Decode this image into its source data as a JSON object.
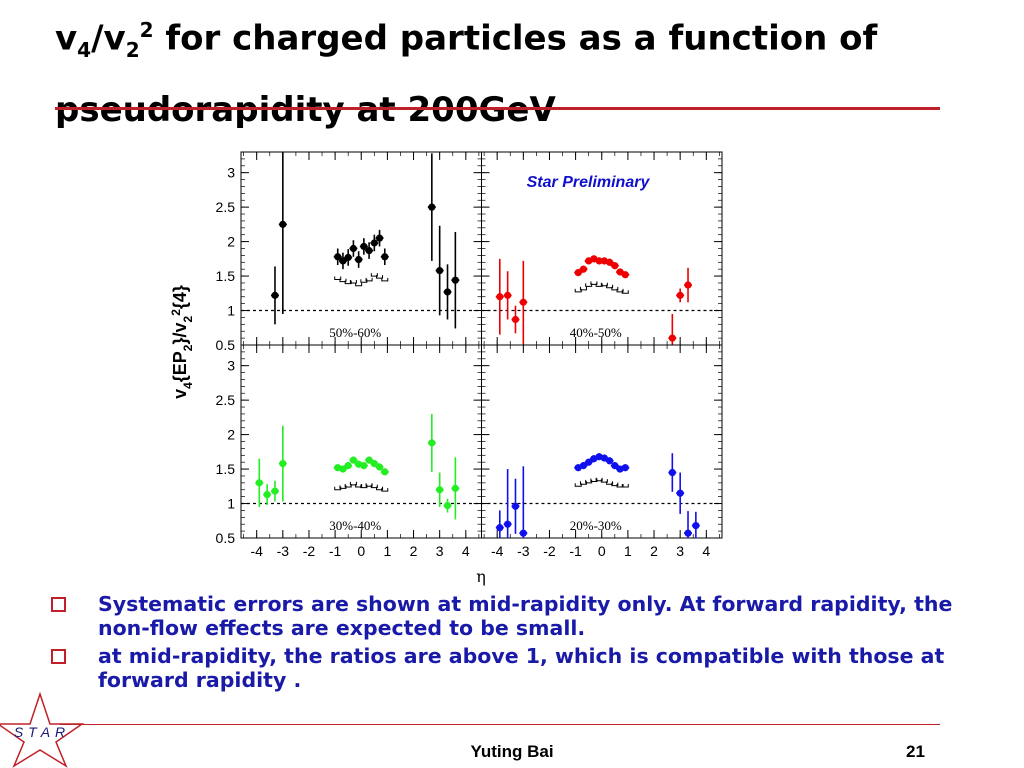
{
  "slide": {
    "title_parts": {
      "a": "v",
      "sub1": "4",
      "b": "/v",
      "sub2": "2",
      "sup": "2",
      "c": " for charged particles as a function of pseudorapidity at 200GeV"
    },
    "footer_name": "Yuting Bai",
    "page_number": "21",
    "logo_text": "STAR",
    "bullets": [
      "Systematic errors are shown at mid-rapidity only. At forward rapidity, the non-flow effects are expected to be small.",
      "at mid-rapidity, the ratios are above 1, which is compatible with those at forward rapidity ."
    ],
    "colors": {
      "title_rule": "#c0202a",
      "bullet_text": "#1a1aa8",
      "bullet_marker": "#c0202a"
    }
  },
  "chart_data": {
    "type": "scatter",
    "annotation": "Star Preliminary",
    "ylabel_parts": {
      "main": "v",
      "s1": "4",
      "m2": "{EP",
      "s2": "2",
      "m3": "}/v",
      "s3": "2",
      "sup": "2",
      "m4": "{4}"
    },
    "xlabel": "η",
    "xlim": [
      -4.6,
      4.6
    ],
    "ylim": [
      0.5,
      3.3
    ],
    "y_ticks": [
      0.5,
      1,
      1.5,
      2,
      2.5,
      3
    ],
    "x_ticks": [
      -4,
      -3,
      -2,
      -1,
      0,
      1,
      2,
      3,
      4
    ],
    "reference_line": 1,
    "grid": false,
    "panels": [
      {
        "label": "50%-60%",
        "color": "#000000",
        "points": [
          {
            "x": -3.3,
            "y": 1.22,
            "err": 0.42
          },
          {
            "x": -3.0,
            "y": 2.25,
            "err": 1.3
          },
          {
            "x": -0.9,
            "y": 1.78,
            "err": 0.12
          },
          {
            "x": -0.7,
            "y": 1.72,
            "err": 0.12
          },
          {
            "x": -0.5,
            "y": 1.77,
            "err": 0.12
          },
          {
            "x": -0.3,
            "y": 1.9,
            "err": 0.12
          },
          {
            "x": -0.1,
            "y": 1.74,
            "err": 0.12
          },
          {
            "x": 0.1,
            "y": 1.93,
            "err": 0.12
          },
          {
            "x": 0.3,
            "y": 1.87,
            "err": 0.12
          },
          {
            "x": 0.5,
            "y": 1.98,
            "err": 0.12
          },
          {
            "x": 0.7,
            "y": 2.05,
            "err": 0.12
          },
          {
            "x": 0.9,
            "y": 1.78,
            "err": 0.12
          },
          {
            "x": 2.7,
            "y": 2.5,
            "err": 0.78
          },
          {
            "x": 3.0,
            "y": 1.58,
            "err": 0.65
          },
          {
            "x": 3.3,
            "y": 1.27,
            "err": 0.4
          },
          {
            "x": 3.6,
            "y": 1.44,
            "err": 0.7
          }
        ],
        "systematic_lower": [
          1.45,
          1.42,
          1.39,
          1.4,
          1.36,
          1.41,
          1.43,
          1.5,
          1.47,
          1.43
        ]
      },
      {
        "label": "40%-50%",
        "color": "#ee0000",
        "points": [
          {
            "x": -3.9,
            "y": 1.2,
            "err": 0.55
          },
          {
            "x": -3.6,
            "y": 1.22,
            "err": 0.35
          },
          {
            "x": -3.3,
            "y": 0.87,
            "err": 0.2
          },
          {
            "x": -3.0,
            "y": 1.12,
            "err": 0.6
          },
          {
            "x": -0.9,
            "y": 1.55,
            "err": 0.05
          },
          {
            "x": -0.7,
            "y": 1.6,
            "err": 0.05
          },
          {
            "x": -0.5,
            "y": 1.72,
            "err": 0.05
          },
          {
            "x": -0.3,
            "y": 1.75,
            "err": 0.05
          },
          {
            "x": -0.1,
            "y": 1.72,
            "err": 0.05
          },
          {
            "x": 0.1,
            "y": 1.72,
            "err": 0.05
          },
          {
            "x": 0.3,
            "y": 1.7,
            "err": 0.05
          },
          {
            "x": 0.5,
            "y": 1.65,
            "err": 0.05
          },
          {
            "x": 0.7,
            "y": 1.56,
            "err": 0.05
          },
          {
            "x": 0.9,
            "y": 1.52,
            "err": 0.05
          },
          {
            "x": 2.7,
            "y": 0.6,
            "err": 0.35
          },
          {
            "x": 3.0,
            "y": 1.22,
            "err": 0.1
          },
          {
            "x": 3.3,
            "y": 1.37,
            "err": 0.25
          }
        ],
        "systematic_lower": [
          1.27,
          1.3,
          1.35,
          1.38,
          1.35,
          1.36,
          1.33,
          1.3,
          1.27,
          1.25
        ]
      },
      {
        "label": "30%-40%",
        "color": "#22ee22",
        "points": [
          {
            "x": -3.9,
            "y": 1.3,
            "err": 0.35
          },
          {
            "x": -3.6,
            "y": 1.13,
            "err": 0.15
          },
          {
            "x": -3.3,
            "y": 1.18,
            "err": 0.15
          },
          {
            "x": -3.0,
            "y": 1.58,
            "err": 0.55
          },
          {
            "x": -0.9,
            "y": 1.52,
            "err": 0.05
          },
          {
            "x": -0.7,
            "y": 1.5,
            "err": 0.05
          },
          {
            "x": -0.5,
            "y": 1.55,
            "err": 0.05
          },
          {
            "x": -0.3,
            "y": 1.63,
            "err": 0.05
          },
          {
            "x": -0.1,
            "y": 1.57,
            "err": 0.05
          },
          {
            "x": 0.1,
            "y": 1.55,
            "err": 0.05
          },
          {
            "x": 0.3,
            "y": 1.63,
            "err": 0.05
          },
          {
            "x": 0.5,
            "y": 1.58,
            "err": 0.05
          },
          {
            "x": 0.7,
            "y": 1.53,
            "err": 0.05
          },
          {
            "x": 0.9,
            "y": 1.46,
            "err": 0.05
          },
          {
            "x": 2.7,
            "y": 1.88,
            "err": 0.42
          },
          {
            "x": 3.0,
            "y": 1.2,
            "err": 0.25
          },
          {
            "x": 3.3,
            "y": 0.97,
            "err": 0.1
          },
          {
            "x": 3.6,
            "y": 1.22,
            "err": 0.45
          }
        ],
        "systematic_lower": [
          1.2,
          1.22,
          1.24,
          1.27,
          1.24,
          1.23,
          1.25,
          1.23,
          1.2,
          1.18
        ]
      },
      {
        "label": "20%-30%",
        "color": "#1010ee",
        "points": [
          {
            "x": -3.9,
            "y": 0.65,
            "err": 0.25
          },
          {
            "x": -3.6,
            "y": 0.7,
            "err": 0.8
          },
          {
            "x": -3.3,
            "y": 0.96,
            "err": 0.4
          },
          {
            "x": -3.0,
            "y": 0.57,
            "err": 0.97
          },
          {
            "x": -0.9,
            "y": 1.52,
            "err": 0.05
          },
          {
            "x": -0.7,
            "y": 1.55,
            "err": 0.05
          },
          {
            "x": -0.5,
            "y": 1.6,
            "err": 0.05
          },
          {
            "x": -0.3,
            "y": 1.65,
            "err": 0.05
          },
          {
            "x": -0.1,
            "y": 1.68,
            "err": 0.05
          },
          {
            "x": 0.1,
            "y": 1.66,
            "err": 0.05
          },
          {
            "x": 0.3,
            "y": 1.62,
            "err": 0.05
          },
          {
            "x": 0.5,
            "y": 1.55,
            "err": 0.05
          },
          {
            "x": 0.7,
            "y": 1.5,
            "err": 0.05
          },
          {
            "x": 0.9,
            "y": 1.52,
            "err": 0.05
          },
          {
            "x": 2.7,
            "y": 1.45,
            "err": 0.28
          },
          {
            "x": 3.0,
            "y": 1.15,
            "err": 0.3
          },
          {
            "x": 3.3,
            "y": 0.57,
            "err": 0.32
          },
          {
            "x": 3.6,
            "y": 0.68,
            "err": 0.2
          }
        ],
        "systematic_lower": [
          1.25,
          1.28,
          1.3,
          1.32,
          1.33,
          1.31,
          1.28,
          1.26,
          1.24,
          1.24
        ]
      }
    ]
  }
}
